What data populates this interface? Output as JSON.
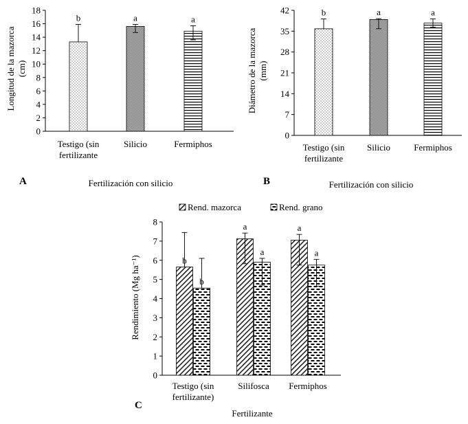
{
  "chart_data": [
    {
      "id": "A",
      "type": "bar",
      "panel_label": "A",
      "ylabel": "Longitud de la mazorca (cm)",
      "ylabel_lines": [
        "Longitud de la mazorca",
        "(cm)"
      ],
      "xlabel": "Fertilización con silicio",
      "ylim": [
        0,
        18
      ],
      "yticks": [
        0,
        2,
        4,
        6,
        8,
        10,
        12,
        14,
        16,
        18
      ],
      "categories": [
        [
          "Testigo (sin",
          "fertilizante"
        ],
        [
          "Silicio"
        ],
        [
          "Fermiphos"
        ]
      ],
      "values": [
        13.3,
        15.6,
        14.9
      ],
      "error_up": [
        2.6,
        0.3,
        0.8
      ],
      "error_down": [
        0,
        0.9,
        1.3
      ],
      "letters": [
        "b",
        "a",
        "a"
      ],
      "patterns": [
        "dots-light",
        "dots-dense",
        "hlines"
      ]
    },
    {
      "id": "B",
      "type": "bar",
      "panel_label": "B",
      "ylabel": "Diámetro de la mazorca (mm)",
      "ylabel_lines": [
        "Diámetro de la mazorca",
        "(mm)"
      ],
      "xlabel": "Fertilización con silicio",
      "ylim": [
        0,
        42
      ],
      "yticks": [
        0,
        7,
        14,
        21,
        28,
        35,
        42
      ],
      "categories": [
        [
          "Testigo (sin",
          "fertilizante"
        ],
        [
          "Silicio"
        ],
        [
          "Fermiphos"
        ]
      ],
      "values": [
        35.8,
        38.9,
        37.7
      ],
      "error_up": [
        3.3,
        0.3,
        1.4
      ],
      "error_down": [
        0,
        3.1,
        1.4
      ],
      "letters": [
        "b",
        "a",
        "a"
      ],
      "patterns": [
        "dots-light",
        "dots-dense",
        "hlines"
      ]
    },
    {
      "id": "C",
      "type": "bar",
      "panel_label": "C",
      "ylabel": "Rendimiento (Mg ha⁻¹)",
      "xlabel": "Fertilizante",
      "ylim": [
        0,
        8
      ],
      "yticks": [
        0,
        1,
        2,
        3,
        4,
        5,
        6,
        7,
        8
      ],
      "categories": [
        [
          "Testigo (sin",
          "fertilizante)"
        ],
        [
          "Silifosca"
        ],
        [
          "Fermiphos"
        ]
      ],
      "series": [
        {
          "name": "Rend. mazorca",
          "values": [
            5.65,
            7.12,
            7.05
          ],
          "error_up": [
            1.8,
            0.3,
            0.3
          ],
          "error_down": [
            0,
            1.3,
            1.3
          ],
          "letters": [
            "b",
            "a",
            "a"
          ],
          "pattern": "diag"
        },
        {
          "name": "Rend. grano",
          "values": [
            4.55,
            5.9,
            5.75
          ],
          "error_up": [
            1.55,
            0.2,
            0.3
          ],
          "error_down": [
            0,
            1.2,
            1.1
          ],
          "letters": [
            "b",
            "a",
            "a"
          ],
          "pattern": "dashes"
        }
      ]
    }
  ]
}
